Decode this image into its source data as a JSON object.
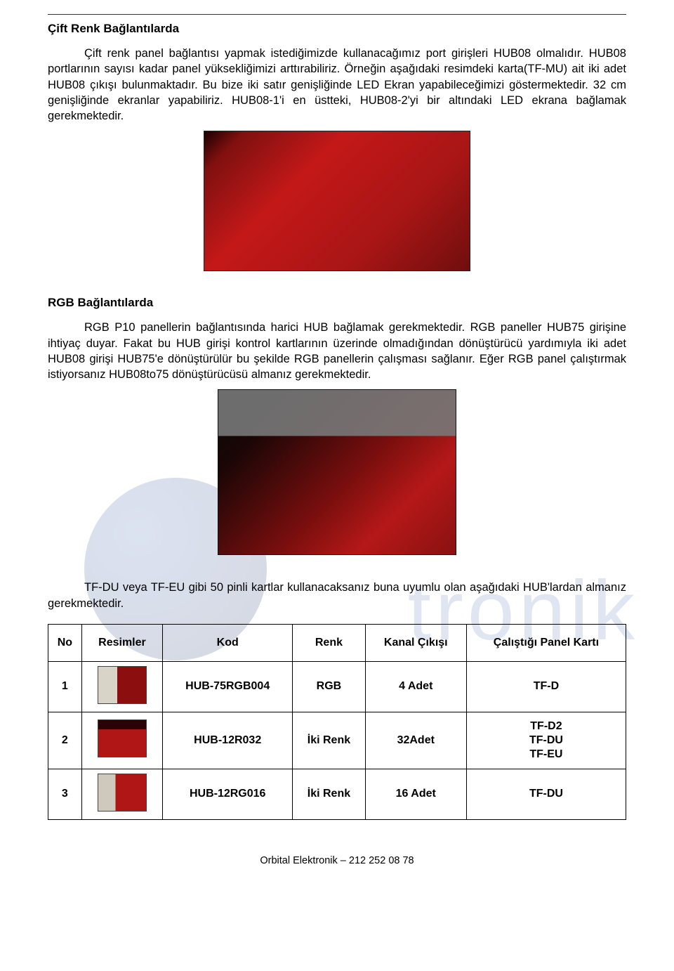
{
  "section1": {
    "title": "Çift Renk Bağlantılarda",
    "para": "Çift renk panel bağlantısı yapmak istediğimizde kullanacağımız port girişleri HUB08 olmalıdır. HUB08 portlarının sayısı kadar panel yüksekliğimizi arttırabiliriz. Örneğin aşağıdaki resimdeki karta(TF-MU) ait iki adet HUB08 çıkışı bulunmaktadır. Bu bize iki satır genişliğinde LED Ekran yapabileceğimizi göstermektedir. 32 cm genişliğinde ekranlar yapabiliriz. HUB08-1'i en üstteki, HUB08-2'yi bir altındaki LED ekrana bağlamak gerekmektedir."
  },
  "section2": {
    "title": "RGB Bağlantılarda",
    "para": "RGB P10 panellerin bağlantısında harici HUB bağlamak gerekmektedir. RGB paneller HUB75 girişine ihtiyaç duyar. Fakat bu HUB girişi kontrol kartlarının üzerinde olmadığından dönüştürücü yardımıyla iki adet HUB08 girişi HUB75'e dönüştürülür bu şekilde RGB panellerin çalışması sağlanır. Eğer RGB panel çalıştırmak istiyorsanız HUB08to75 dönüştürücüsü almanız gerekmektedir."
  },
  "note": "TF-DU veya TF-EU gibi 50 pinli kartlar kullanacaksanız buna uyumlu olan aşağıdaki HUB'lardan   almanız   gerekmektedir.",
  "table": {
    "headers": [
      "No",
      "Resimler",
      "Kod",
      "Renk",
      "Kanal Çıkışı",
      "Çalıştığı Panel Kartı"
    ],
    "rows": [
      {
        "no": "1",
        "kod": "HUB-75RGB004",
        "renk": "RGB",
        "kanal": "4 Adet",
        "kart": "TF-D"
      },
      {
        "no": "2",
        "kod": "HUB-12R032",
        "renk": "İki Renk",
        "kanal": "32Adet",
        "kart": "TF-D2\nTF-DU\nTF-EU"
      },
      {
        "no": "3",
        "kod": "HUB-12RG016",
        "renk": "İki Renk",
        "kanal": "16 Adet",
        "kart": "TF-DU"
      }
    ]
  },
  "footer": "Orbital Elektronik – 212 252 08 78",
  "colors": {
    "text": "#000000",
    "border": "#000000",
    "wm_blue": "#5b7ab8",
    "board_red": "#b01616"
  }
}
